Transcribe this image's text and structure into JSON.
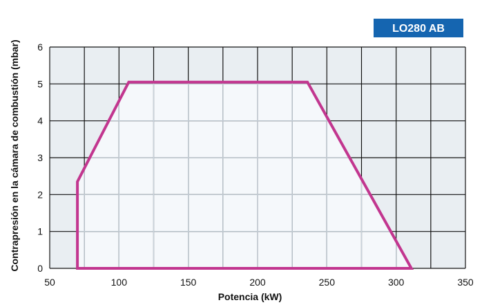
{
  "badge": {
    "text": "LO280 AB",
    "color": "#1565b0"
  },
  "colors": {
    "grid_outer": "#e9eef2",
    "grid_inner": "#f5f8fb",
    "grid_line_dark": "#111111",
    "grid_line_light": "#c9d3dc",
    "envelope": "#c2368f"
  },
  "chart_data": {
    "type": "area",
    "title": "",
    "xlabel": "Potencia (kW)",
    "ylabel": "Contrapresión en la cámara de combustión (mbar)",
    "xlim": [
      50,
      350
    ],
    "ylim": [
      0,
      6
    ],
    "x_ticks": [
      "50",
      "100",
      "150",
      "200",
      "250",
      "300",
      "350"
    ],
    "y_ticks": [
      "0",
      "1",
      "2",
      "3",
      "4",
      "5",
      "6"
    ],
    "grid": true,
    "series": [
      {
        "x": [
          70,
          70,
          107,
          236,
          311,
          70
        ],
        "y": [
          0,
          2.35,
          5.05,
          5.05,
          0,
          0
        ]
      }
    ]
  }
}
